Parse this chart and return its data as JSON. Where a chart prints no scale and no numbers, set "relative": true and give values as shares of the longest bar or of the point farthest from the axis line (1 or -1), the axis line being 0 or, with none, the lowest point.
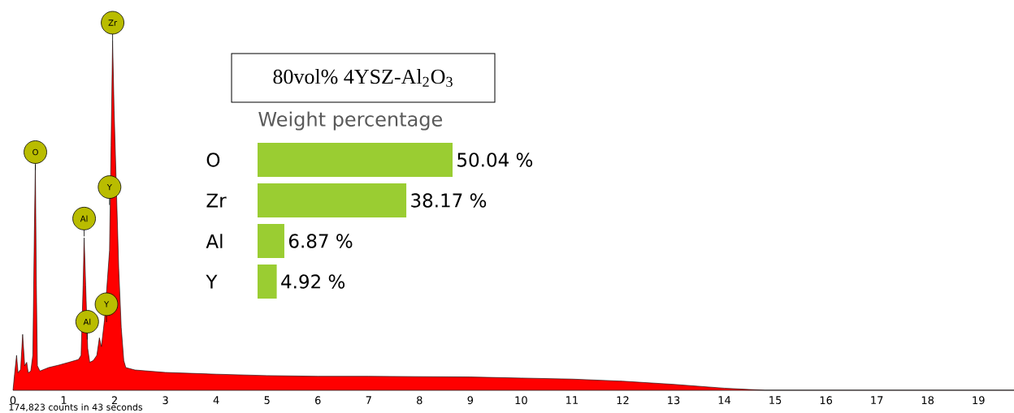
{
  "chart_data": [
    {
      "type": "area",
      "relative": true,
      "color": "#ff0000",
      "xlim": [
        0,
        19.7
      ],
      "xticks": [
        0,
        1,
        2,
        3,
        4,
        5,
        6,
        7,
        8,
        9,
        10,
        11,
        12,
        13,
        14,
        15,
        16,
        17,
        18,
        19
      ],
      "x": [
        0,
        0.03,
        0.07,
        0.1,
        0.15,
        0.19,
        0.23,
        0.27,
        0.3,
        0.35,
        0.39,
        0.42,
        0.44,
        0.46,
        0.48,
        0.53,
        0.7,
        0.9,
        1.1,
        1.29,
        1.34,
        1.38,
        1.4,
        1.43,
        1.47,
        1.51,
        1.58,
        1.65,
        1.7,
        1.74,
        1.8,
        1.9,
        1.93,
        1.96,
        1.99,
        2.03,
        2.08,
        2.13,
        2.18,
        2.22,
        2.4,
        3,
        4,
        5,
        6,
        7,
        8,
        9,
        10,
        11,
        12,
        13,
        14,
        14.8,
        19.7
      ],
      "values": [
        0,
        0.045,
        0.1,
        0.05,
        0.06,
        0.16,
        0.07,
        0.08,
        0.05,
        0.055,
        0.1,
        0.45,
        0.645,
        0.3,
        0.07,
        0.055,
        0.065,
        0.072,
        0.08,
        0.088,
        0.1,
        0.3,
        0.436,
        0.3,
        0.12,
        0.08,
        0.085,
        0.1,
        0.15,
        0.125,
        0.2,
        0.4,
        0.7,
        1.0,
        0.8,
        0.6,
        0.35,
        0.18,
        0.085,
        0.065,
        0.058,
        0.051,
        0.046,
        0.042,
        0.04,
        0.04,
        0.039,
        0.038,
        0.035,
        0.032,
        0.026,
        0.017,
        0.006,
        0,
        0
      ],
      "annotations": [
        {
          "text": "Zr",
          "x": 1.96,
          "y": 1.0
        },
        {
          "text": "O",
          "x": 0.44,
          "y": 0.63
        },
        {
          "text": "Al",
          "x": 1.4,
          "y": 0.44
        },
        {
          "text": "Y",
          "x": 1.9,
          "y": 0.53
        },
        {
          "text": "Y",
          "x": 1.84,
          "y": 0.195
        },
        {
          "text": "Al",
          "x": 1.46,
          "y": 0.145
        },
        "174,823 counts in 43 seconds"
      ]
    },
    {
      "type": "bar",
      "orientation": "horizontal",
      "title": "80vol% 4YSZ-Al$_{2}$O$_{3}$",
      "subtitle": "Weight percentage",
      "categories": [
        "O",
        "Zr",
        "Al",
        "Y"
      ],
      "values": [
        50.04,
        38.17,
        6.87,
        4.92
      ],
      "color": "#9acd32",
      "value_labels": [
        "50.04 %",
        "38.17 %",
        "6.87 %",
        "4.92 %"
      ]
    }
  ]
}
